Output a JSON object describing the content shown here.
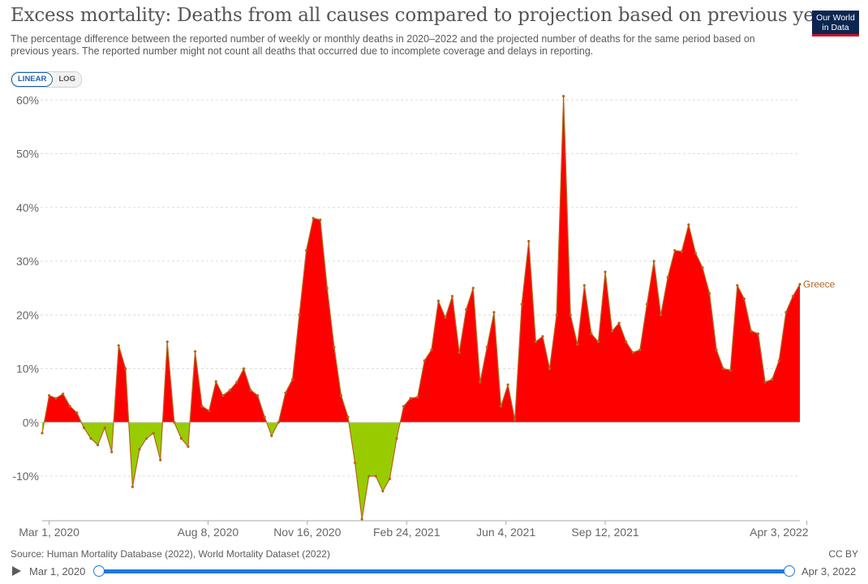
{
  "header": {
    "title": "Excess mortality: Deaths from all causes compared to projection based on previous years",
    "subtitle": "The percentage difference between the reported number of weekly or monthly deaths in 2020–2022 and the projected number of deaths for the same period based on previous years. The reported number might not count all deaths that occurred due to incomplete coverage and delays in reporting.",
    "logo_line1": "Our World",
    "logo_line2": "in Data"
  },
  "controls": {
    "linear_label": "LINEAR",
    "log_label": "LOG",
    "active": "linear"
  },
  "footer": {
    "source": "Source: Human Mortality Database (2022), World Mortality Dataset (2022)",
    "license": "CC BY"
  },
  "timeline": {
    "start_label": "Mar 1, 2020",
    "end_label": "Apr 3, 2022"
  },
  "colors": {
    "positive": "#ff0000",
    "negative": "#99cc00",
    "line": "#b5651d",
    "grid": "#dddddd"
  },
  "chart_data": {
    "type": "area",
    "x_start": "2020-02-23",
    "x_interval": "weekly",
    "x_ticks": [
      "Mar 1, 2020",
      "Aug 8, 2020",
      "Nov 16, 2020",
      "Feb 24, 2021",
      "Jun 4, 2021",
      "Sep 12, 2021",
      "Apr 3, 2022"
    ],
    "y_ticks": [
      "-10%",
      "0%",
      "10%",
      "20%",
      "30%",
      "40%",
      "50%",
      "60%"
    ],
    "ylim": [
      -18,
      62
    ],
    "y_unit": "%",
    "grid": "horizontal-dashed",
    "series": [
      {
        "name": "Greece",
        "values": [
          -2,
          5,
          4.5,
          5.3,
          3,
          1.8,
          -1,
          -3,
          -4.2,
          -1,
          -5.5,
          14.3,
          10,
          -12,
          -5,
          -3,
          -2,
          -7,
          15,
          0,
          -3,
          -4.5,
          13.2,
          3,
          2.2,
          7.6,
          5,
          6,
          7.5,
          10,
          6,
          5,
          1,
          -2.5,
          0,
          5.5,
          8,
          20,
          32,
          38,
          37.7,
          25,
          14,
          5,
          1,
          -7.5,
          -18,
          -10,
          -10,
          -12.8,
          -10.5,
          -3,
          3,
          4.5,
          4.7,
          11.5,
          13.5,
          22.6,
          19.5,
          23.5,
          13,
          21,
          25,
          7.5,
          14,
          20.5,
          3,
          7,
          0.5,
          22,
          33.7,
          15,
          16,
          10,
          20,
          60.7,
          20,
          14.5,
          25.5,
          16.5,
          15,
          28,
          17,
          18.5,
          15,
          13,
          13.5,
          22,
          30,
          20,
          27,
          32,
          31.8,
          36.8,
          31.5,
          28.8,
          24,
          13.5,
          10,
          9.7,
          25.5,
          23,
          17,
          16.5,
          7.5,
          8,
          11.5,
          20.5,
          23.5,
          25.7
        ]
      }
    ]
  }
}
